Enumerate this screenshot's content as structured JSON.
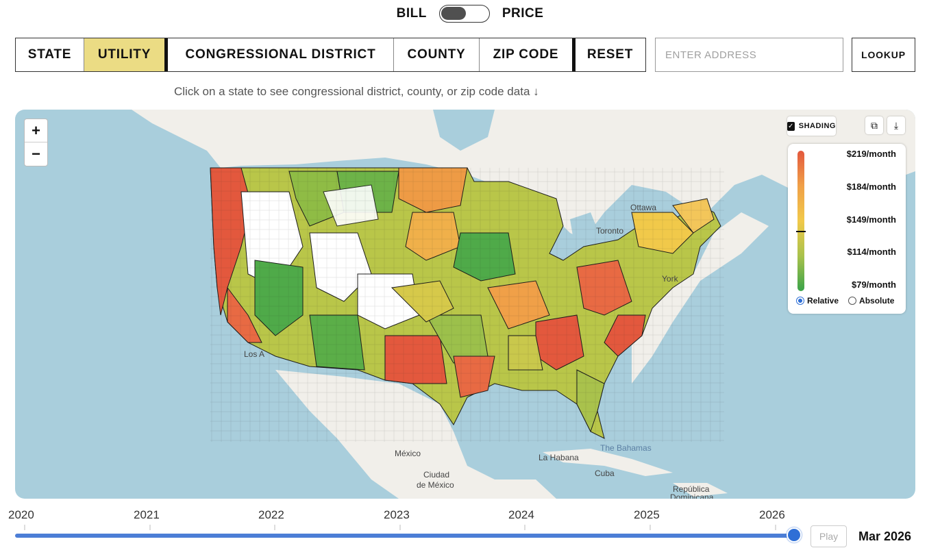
{
  "toggle": {
    "left_label": "BILL",
    "right_label": "PRICE"
  },
  "tabs": [
    {
      "label": "STATE"
    },
    {
      "label": "UTILITY"
    },
    {
      "label": "CONGRESSIONAL DISTRICT"
    },
    {
      "label": "COUNTY"
    },
    {
      "label": "ZIP CODE"
    },
    {
      "label": "RESET"
    }
  ],
  "address": {
    "placeholder": "ENTER ADDRESS"
  },
  "lookup_label": "LOOKUP",
  "hint": "Click on a state to see congressional district, county, or zip code data ↓",
  "map": {
    "zoom_in": "+",
    "zoom_out": "−",
    "shading_label": "SHADING",
    "legend": {
      "labels": [
        "$219/month",
        "$184/month",
        "$149/month",
        "$114/month",
        "$79/month"
      ],
      "relative_label": "Relative",
      "absolute_label": "Absolute",
      "colors": [
        "#e3583d",
        "#f0a048",
        "#f1c94a",
        "#a9c24c",
        "#3aa34a"
      ]
    },
    "places": {
      "ottawa": "Ottawa",
      "toronto": "Toronto",
      "york": "York",
      "los_angeles": "Los A",
      "mexico": "México",
      "ciudad": "Ciudad",
      "de_mexico": "de México",
      "habana": "La Habana",
      "bahamas": "The Bahamas",
      "cuba": "Cuba",
      "republica": "República",
      "dominicana": "Dominicana"
    },
    "colors": {
      "water": "#a9cedc",
      "land": "#f1efea",
      "no_data": "#ffffff"
    }
  },
  "timeline": {
    "years": [
      "2020",
      "2021",
      "2022",
      "2023",
      "2024",
      "2025",
      "2026"
    ],
    "play_label": "Play",
    "current": "Mar 2026",
    "progress": 1.0
  }
}
